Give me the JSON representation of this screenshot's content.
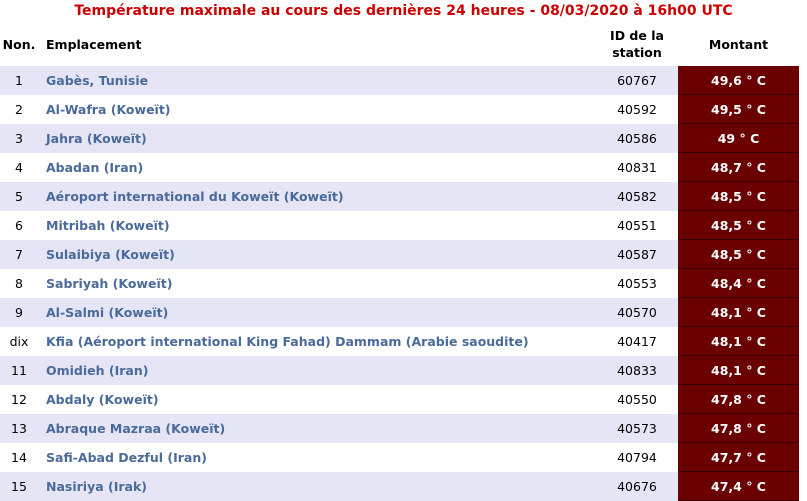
{
  "title": "Température maximale au cours des dernières 24 heures - 08/03/2020 à 16h00 UTC",
  "headers": {
    "no": "Non.",
    "location": "Emplacement",
    "station_id_line1": "ID de la",
    "station_id_line2": "station",
    "amount": "Montant"
  },
  "rows": [
    {
      "no": "1",
      "location": "Gabès, Tunisie",
      "id": "60767",
      "value": "49,6 ° C"
    },
    {
      "no": "2",
      "location": "Al-Wafra (Koweït)",
      "id": "40592",
      "value": "49,5 ° C"
    },
    {
      "no": "3",
      "location": "Jahra (Koweït)",
      "id": "40586",
      "value": "49 ° C"
    },
    {
      "no": "4",
      "location": "Abadan (Iran)",
      "id": "40831",
      "value": "48,7 ° C"
    },
    {
      "no": "5",
      "location": "Aéroport international du Koweït (Koweït)",
      "id": "40582",
      "value": "48,5 ° C"
    },
    {
      "no": "6",
      "location": "Mitribah (Koweït)",
      "id": "40551",
      "value": "48,5 ° C"
    },
    {
      "no": "7",
      "location": "Sulaibiya (Koweït)",
      "id": "40587",
      "value": "48,5 ° C"
    },
    {
      "no": "8",
      "location": "Sabriyah (Koweït)",
      "id": "40553",
      "value": "48,4 ° C"
    },
    {
      "no": "9",
      "location": "Al-Salmi (Koweït)",
      "id": "40570",
      "value": "48,1 ° C"
    },
    {
      "no": "dix",
      "location": "Kfia (Aéroport international King Fahad) Dammam (Arabie saoudite)",
      "id": "40417",
      "value": "48,1 ° C"
    },
    {
      "no": "11",
      "location": "Omidieh (Iran)",
      "id": "40833",
      "value": "48,1 ° C"
    },
    {
      "no": "12",
      "location": "Abdaly (Koweït)",
      "id": "40550",
      "value": "47,8 ° C"
    },
    {
      "no": "13",
      "location": "Abraque Mazraa (Koweït)",
      "id": "40573",
      "value": "47,8 ° C"
    },
    {
      "no": "14",
      "location": "Safi-Abad Dezful (Iran)",
      "id": "40794",
      "value": "47,7 ° C"
    },
    {
      "no": "15",
      "location": "Nasiriya (Irak)",
      "id": "40676",
      "value": "47,4 ° C"
    }
  ],
  "colors": {
    "title": "#cc0000",
    "link": "#4a6a9a",
    "zebra": "#e5e5f6",
    "value_cell": "#6b0000"
  }
}
